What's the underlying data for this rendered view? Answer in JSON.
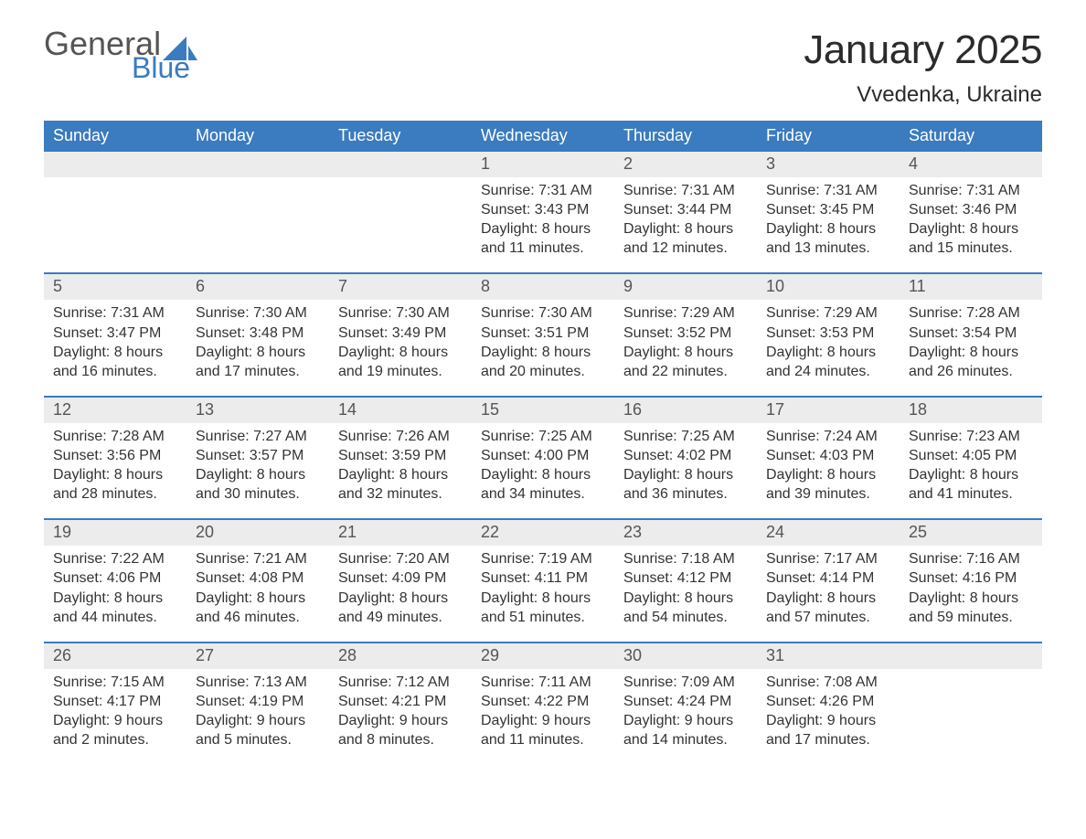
{
  "brand": {
    "word1": "General",
    "word2": "Blue"
  },
  "title": "January 2025",
  "location": "Vvedenka, Ukraine",
  "colors": {
    "header_bg": "#3b7bbf",
    "header_text": "#ffffff",
    "daynum_bg": "#ececec",
    "daynum_text": "#555555",
    "body_text": "#333333",
    "row_divider": "#3b7bbf",
    "logo_gray": "#555555",
    "logo_blue": "#3b7bbf",
    "page_bg": "#ffffff"
  },
  "layout": {
    "columns": 7,
    "weeks": 5,
    "font_family": "Arial",
    "title_fontsize": 44,
    "location_fontsize": 24,
    "weekday_fontsize": 18,
    "daynum_fontsize": 18,
    "body_fontsize": 16
  },
  "weekdays": [
    "Sunday",
    "Monday",
    "Tuesday",
    "Wednesday",
    "Thursday",
    "Friday",
    "Saturday"
  ],
  "weeks": [
    [
      {
        "blank": true
      },
      {
        "blank": true
      },
      {
        "blank": true
      },
      {
        "day": "1",
        "sunrise": "Sunrise: 7:31 AM",
        "sunset": "Sunset: 3:43 PM",
        "dl1": "Daylight: 8 hours",
        "dl2": "and 11 minutes."
      },
      {
        "day": "2",
        "sunrise": "Sunrise: 7:31 AM",
        "sunset": "Sunset: 3:44 PM",
        "dl1": "Daylight: 8 hours",
        "dl2": "and 12 minutes."
      },
      {
        "day": "3",
        "sunrise": "Sunrise: 7:31 AM",
        "sunset": "Sunset: 3:45 PM",
        "dl1": "Daylight: 8 hours",
        "dl2": "and 13 minutes."
      },
      {
        "day": "4",
        "sunrise": "Sunrise: 7:31 AM",
        "sunset": "Sunset: 3:46 PM",
        "dl1": "Daylight: 8 hours",
        "dl2": "and 15 minutes."
      }
    ],
    [
      {
        "day": "5",
        "sunrise": "Sunrise: 7:31 AM",
        "sunset": "Sunset: 3:47 PM",
        "dl1": "Daylight: 8 hours",
        "dl2": "and 16 minutes."
      },
      {
        "day": "6",
        "sunrise": "Sunrise: 7:30 AM",
        "sunset": "Sunset: 3:48 PM",
        "dl1": "Daylight: 8 hours",
        "dl2": "and 17 minutes."
      },
      {
        "day": "7",
        "sunrise": "Sunrise: 7:30 AM",
        "sunset": "Sunset: 3:49 PM",
        "dl1": "Daylight: 8 hours",
        "dl2": "and 19 minutes."
      },
      {
        "day": "8",
        "sunrise": "Sunrise: 7:30 AM",
        "sunset": "Sunset: 3:51 PM",
        "dl1": "Daylight: 8 hours",
        "dl2": "and 20 minutes."
      },
      {
        "day": "9",
        "sunrise": "Sunrise: 7:29 AM",
        "sunset": "Sunset: 3:52 PM",
        "dl1": "Daylight: 8 hours",
        "dl2": "and 22 minutes."
      },
      {
        "day": "10",
        "sunrise": "Sunrise: 7:29 AM",
        "sunset": "Sunset: 3:53 PM",
        "dl1": "Daylight: 8 hours",
        "dl2": "and 24 minutes."
      },
      {
        "day": "11",
        "sunrise": "Sunrise: 7:28 AM",
        "sunset": "Sunset: 3:54 PM",
        "dl1": "Daylight: 8 hours",
        "dl2": "and 26 minutes."
      }
    ],
    [
      {
        "day": "12",
        "sunrise": "Sunrise: 7:28 AM",
        "sunset": "Sunset: 3:56 PM",
        "dl1": "Daylight: 8 hours",
        "dl2": "and 28 minutes."
      },
      {
        "day": "13",
        "sunrise": "Sunrise: 7:27 AM",
        "sunset": "Sunset: 3:57 PM",
        "dl1": "Daylight: 8 hours",
        "dl2": "and 30 minutes."
      },
      {
        "day": "14",
        "sunrise": "Sunrise: 7:26 AM",
        "sunset": "Sunset: 3:59 PM",
        "dl1": "Daylight: 8 hours",
        "dl2": "and 32 minutes."
      },
      {
        "day": "15",
        "sunrise": "Sunrise: 7:25 AM",
        "sunset": "Sunset: 4:00 PM",
        "dl1": "Daylight: 8 hours",
        "dl2": "and 34 minutes."
      },
      {
        "day": "16",
        "sunrise": "Sunrise: 7:25 AM",
        "sunset": "Sunset: 4:02 PM",
        "dl1": "Daylight: 8 hours",
        "dl2": "and 36 minutes."
      },
      {
        "day": "17",
        "sunrise": "Sunrise: 7:24 AM",
        "sunset": "Sunset: 4:03 PM",
        "dl1": "Daylight: 8 hours",
        "dl2": "and 39 minutes."
      },
      {
        "day": "18",
        "sunrise": "Sunrise: 7:23 AM",
        "sunset": "Sunset: 4:05 PM",
        "dl1": "Daylight: 8 hours",
        "dl2": "and 41 minutes."
      }
    ],
    [
      {
        "day": "19",
        "sunrise": "Sunrise: 7:22 AM",
        "sunset": "Sunset: 4:06 PM",
        "dl1": "Daylight: 8 hours",
        "dl2": "and 44 minutes."
      },
      {
        "day": "20",
        "sunrise": "Sunrise: 7:21 AM",
        "sunset": "Sunset: 4:08 PM",
        "dl1": "Daylight: 8 hours",
        "dl2": "and 46 minutes."
      },
      {
        "day": "21",
        "sunrise": "Sunrise: 7:20 AM",
        "sunset": "Sunset: 4:09 PM",
        "dl1": "Daylight: 8 hours",
        "dl2": "and 49 minutes."
      },
      {
        "day": "22",
        "sunrise": "Sunrise: 7:19 AM",
        "sunset": "Sunset: 4:11 PM",
        "dl1": "Daylight: 8 hours",
        "dl2": "and 51 minutes."
      },
      {
        "day": "23",
        "sunrise": "Sunrise: 7:18 AM",
        "sunset": "Sunset: 4:12 PM",
        "dl1": "Daylight: 8 hours",
        "dl2": "and 54 minutes."
      },
      {
        "day": "24",
        "sunrise": "Sunrise: 7:17 AM",
        "sunset": "Sunset: 4:14 PM",
        "dl1": "Daylight: 8 hours",
        "dl2": "and 57 minutes."
      },
      {
        "day": "25",
        "sunrise": "Sunrise: 7:16 AM",
        "sunset": "Sunset: 4:16 PM",
        "dl1": "Daylight: 8 hours",
        "dl2": "and 59 minutes."
      }
    ],
    [
      {
        "day": "26",
        "sunrise": "Sunrise: 7:15 AM",
        "sunset": "Sunset: 4:17 PM",
        "dl1": "Daylight: 9 hours",
        "dl2": "and 2 minutes."
      },
      {
        "day": "27",
        "sunrise": "Sunrise: 7:13 AM",
        "sunset": "Sunset: 4:19 PM",
        "dl1": "Daylight: 9 hours",
        "dl2": "and 5 minutes."
      },
      {
        "day": "28",
        "sunrise": "Sunrise: 7:12 AM",
        "sunset": "Sunset: 4:21 PM",
        "dl1": "Daylight: 9 hours",
        "dl2": "and 8 minutes."
      },
      {
        "day": "29",
        "sunrise": "Sunrise: 7:11 AM",
        "sunset": "Sunset: 4:22 PM",
        "dl1": "Daylight: 9 hours",
        "dl2": "and 11 minutes."
      },
      {
        "day": "30",
        "sunrise": "Sunrise: 7:09 AM",
        "sunset": "Sunset: 4:24 PM",
        "dl1": "Daylight: 9 hours",
        "dl2": "and 14 minutes."
      },
      {
        "day": "31",
        "sunrise": "Sunrise: 7:08 AM",
        "sunset": "Sunset: 4:26 PM",
        "dl1": "Daylight: 9 hours",
        "dl2": "and 17 minutes."
      },
      {
        "blank": true
      }
    ]
  ]
}
